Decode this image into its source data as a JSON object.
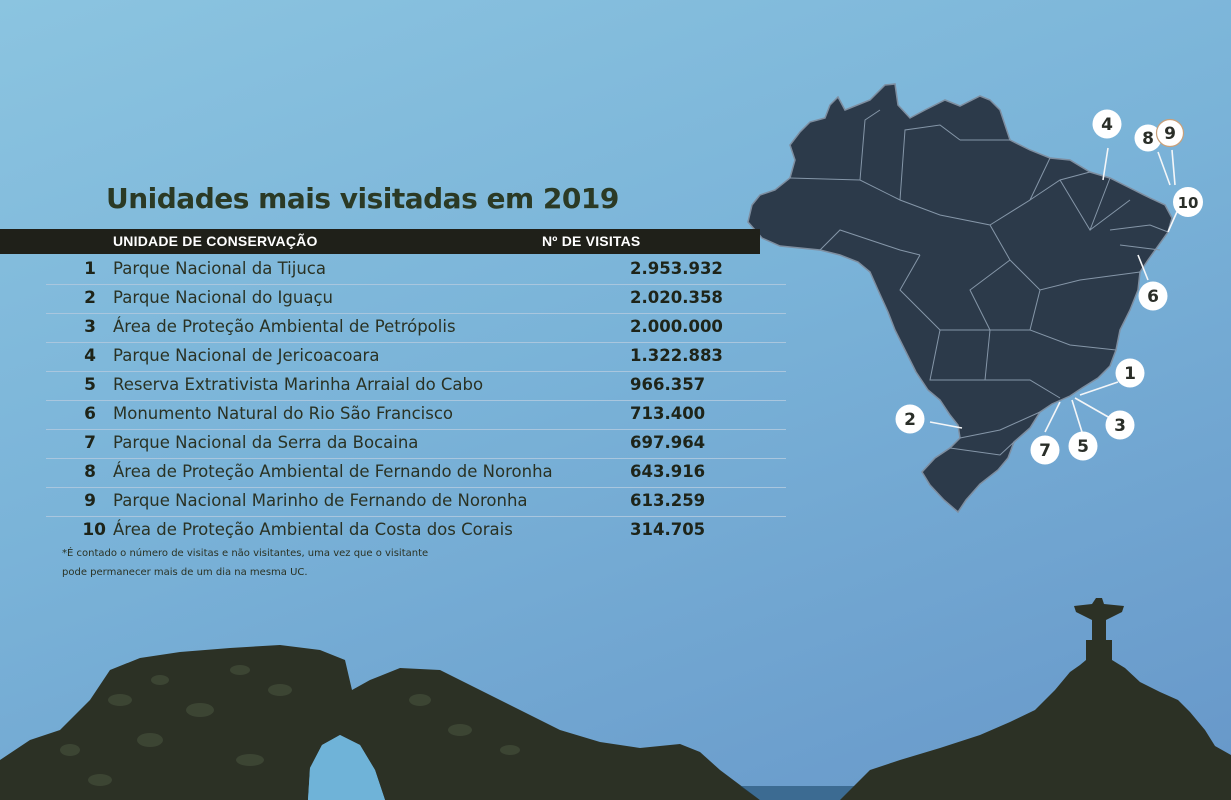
{
  "title": "Unidades mais visitadas em 2019",
  "table": {
    "headers": {
      "name": "UNIDADE DE CONSERVAÇÃO",
      "visits": "Nº DE VISITAS"
    },
    "rows": [
      {
        "rank": "1",
        "name": "Parque Nacional da Tijuca",
        "visits": "2.953.932"
      },
      {
        "rank": "2",
        "name": "Parque Nacional do Iguaçu",
        "visits": "2.020.358"
      },
      {
        "rank": "3",
        "name": "Área de Proteção Ambiental de Petrópolis",
        "visits": "2.000.000"
      },
      {
        "rank": "4",
        "name": "Parque Nacional de Jericoacoara",
        "visits": "1.322.883"
      },
      {
        "rank": "5",
        "name": "Reserva Extrativista Marinha Arraial do Cabo",
        "visits": "966.357"
      },
      {
        "rank": "6",
        "name": "Monumento Natural do Rio São Francisco",
        "visits": "713.400"
      },
      {
        "rank": "7",
        "name": "Parque Nacional da Serra da Bocaina",
        "visits": "697.964"
      },
      {
        "rank": "8",
        "name": "Área de Proteção Ambiental de Fernando de Noronha",
        "visits": "643.916"
      },
      {
        "rank": "9",
        "name": "Parque Nacional Marinho de Fernando de Noronha",
        "visits": "613.259"
      },
      {
        "rank": "10",
        "name": "Área de Proteção Ambiental da Costa dos Corais",
        "visits": "314.705"
      }
    ]
  },
  "footnote": {
    "line1": "*É contado o número de visitas e não visitantes, uma vez que o visitante",
    "line2": "pode permanecer mais de um dia na mesma UC."
  },
  "map": {
    "markers": [
      "1",
      "2",
      "3",
      "4",
      "5",
      "6",
      "7",
      "8",
      "9",
      "10"
    ]
  },
  "colors": {
    "map_fill": "#2c3a4a",
    "header_bar": "#1f2019",
    "title": "#2b3a25",
    "silhouette": "#2c3125"
  }
}
